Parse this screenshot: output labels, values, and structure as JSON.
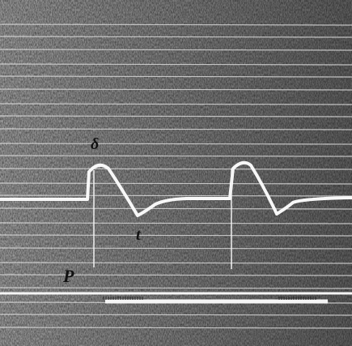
{
  "labels": [
    "δ",
    "t",
    "P"
  ]
}
